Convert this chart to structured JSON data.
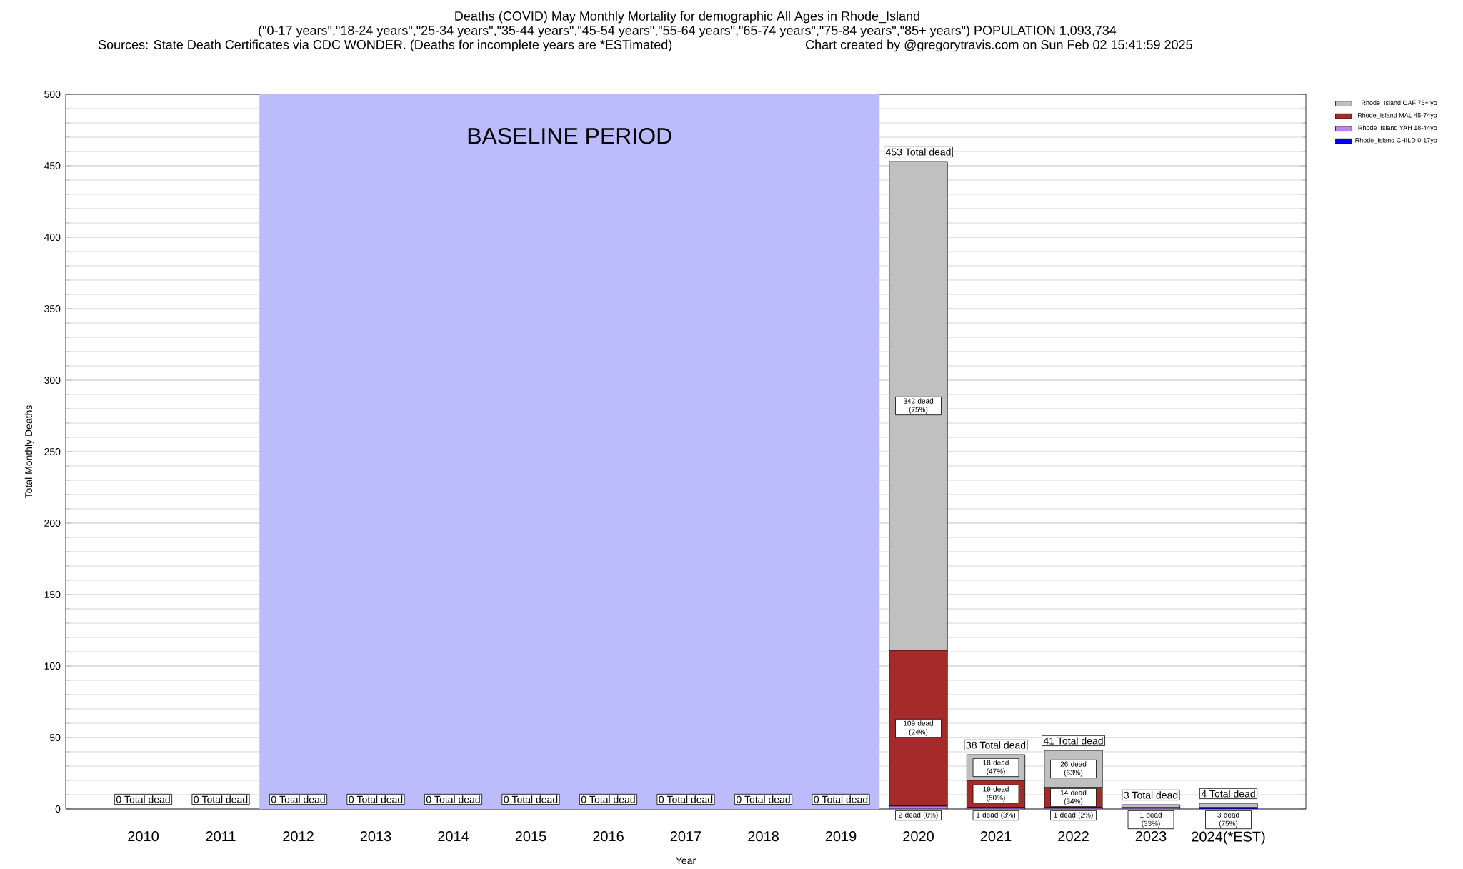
{
  "chart_data": {
    "type": "bar",
    "stacked": true,
    "title": "Deaths (COVID) May Monthly Mortality for demographic All Ages in Rhode_Island",
    "subtitle": "(\"0-17 years\",\"18-24 years\",\"25-34 years\",\"35-44 years\",\"45-54 years\",\"55-64 years\",\"65-74 years\",\"75-84 years\",\"85+ years\") POPULATION 1,093,734",
    "annotations": [
      "Sources: State Death Certificates via CDC WONDER. (Deaths for incomplete years are *ESTimated)",
      "Chart created by @gregorytravis.com on Sun Feb 02 15:41:59 2025"
    ],
    "xlabel": "Year",
    "ylabel": "Total Monthly Deaths",
    "categories": [
      "2010",
      "2011",
      "2012",
      "2013",
      "2014",
      "2015",
      "2016",
      "2017",
      "2018",
      "2019",
      "2020",
      "2021",
      "2022",
      "2023",
      "2024(*EST)"
    ],
    "series": [
      {
        "name": "Rhode_Island CHILD 0-17yo",
        "color": "#0000ff",
        "values": [
          0,
          0,
          0,
          0,
          0,
          0,
          0,
          0,
          0,
          0,
          0,
          0,
          0,
          0,
          1
        ],
        "value_labels": [
          null,
          null,
          null,
          null,
          null,
          null,
          null,
          null,
          null,
          null,
          null,
          null,
          null,
          null,
          null
        ]
      },
      {
        "name": "Rhode_Island YAH 18-44yo",
        "color": "#c080ff",
        "values": [
          0,
          0,
          0,
          0,
          0,
          0,
          0,
          0,
          0,
          0,
          2,
          1,
          1,
          1,
          0
        ],
        "value_labels": [
          null,
          null,
          null,
          null,
          null,
          null,
          null,
          null,
          null,
          null,
          "2 dead (0%)",
          "1 dead (3%)",
          "1 dead (2%)",
          "1 dead (33%)",
          null
        ]
      },
      {
        "name": "Rhode_Island MAL 45-74yo",
        "color": "#a52a2a",
        "values": [
          0,
          0,
          0,
          0,
          0,
          0,
          0,
          0,
          0,
          0,
          109,
          19,
          14,
          0,
          0
        ],
        "value_labels": [
          null,
          null,
          null,
          null,
          null,
          null,
          null,
          null,
          null,
          null,
          "109 dead (24%)",
          "19 dead (50%)",
          "14 dead (34%)",
          null,
          null
        ]
      },
      {
        "name": "Rhode_Island OAF 75+ yo",
        "color": "#c0c0c0",
        "values": [
          0,
          0,
          0,
          0,
          0,
          0,
          0,
          0,
          0,
          0,
          342,
          18,
          26,
          2,
          3
        ],
        "value_labels": [
          null,
          null,
          null,
          null,
          null,
          null,
          null,
          null,
          null,
          null,
          "342 dead (75%)",
          "18 dead (47%)",
          "26 dead (63%)",
          null,
          "3 dead (75%)"
        ]
      }
    ],
    "totals": [
      "0 Total dead",
      "0 Total dead",
      "0 Total dead",
      "0 Total dead",
      "0 Total dead",
      "0 Total dead",
      "0 Total dead",
      "0 Total dead",
      "0 Total dead",
      "0 Total dead",
      "453 Total dead",
      "38 Total dead",
      "41 Total dead",
      "3 Total dead",
      "4 Total dead"
    ],
    "bands": [
      {
        "axis": "x",
        "from": "2012",
        "to": "2019",
        "label": "BASELINE PERIOD",
        "color": "#bcbcfc"
      }
    ],
    "ylim": [
      0,
      500
    ],
    "yticks": [
      0,
      50,
      100,
      150,
      200,
      250,
      300,
      350,
      400,
      450,
      500
    ],
    "grid": "y",
    "legend": "top right"
  }
}
